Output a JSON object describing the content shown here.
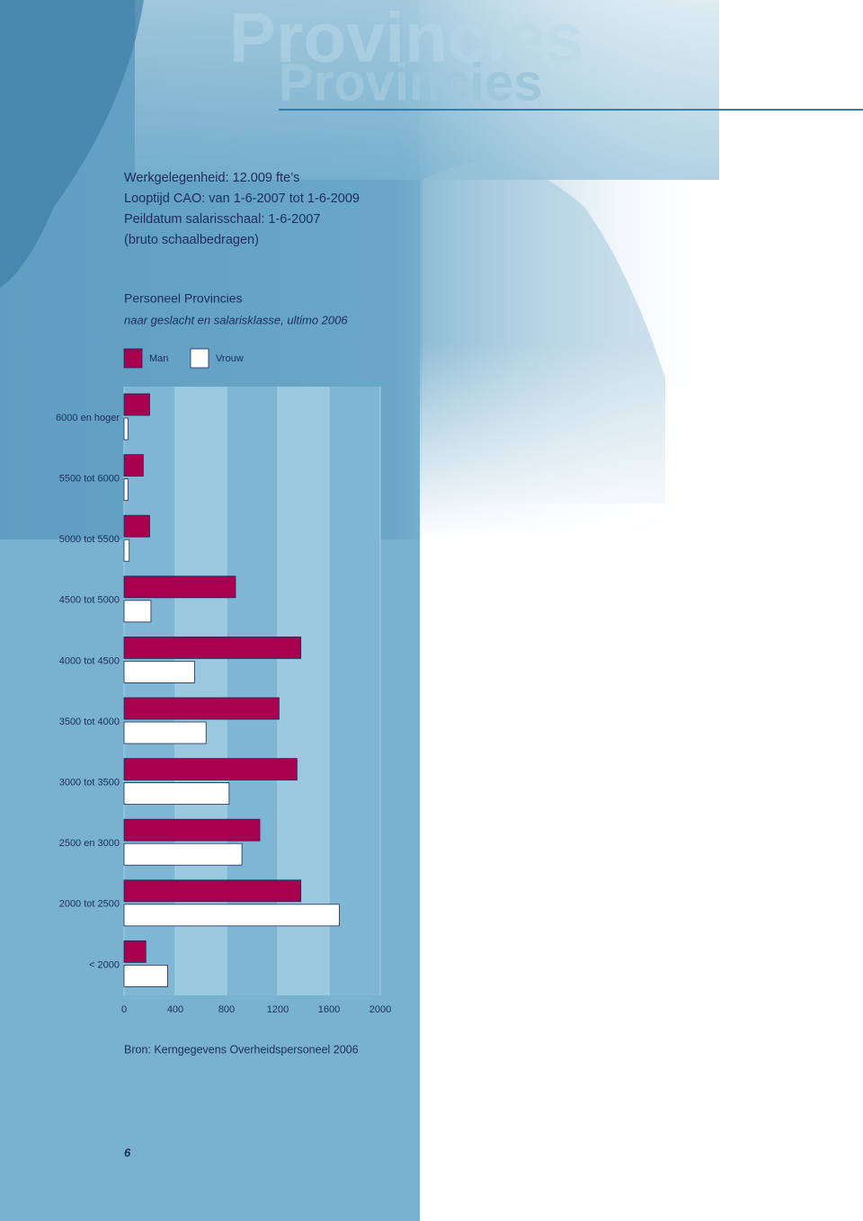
{
  "header": {
    "ghost_title": "Provincies",
    "title": "Provincies",
    "facts": [
      "Werkgelegenheid: 12.009 fte’s",
      "Looptijd CAO: van 1-6-2007 tot 1-6-2009",
      "Peildatum salarisschaal: 1-6-2007",
      "(bruto schaalbedragen)"
    ]
  },
  "chart_data": {
    "type": "hbar",
    "title": "Personeel Provincies",
    "subtitle": "naar geslacht en salarisklasse, ultimo 2006",
    "categories": [
      "6000 en hoger",
      "5500 tot 6000",
      "5000 tot 5500",
      "4500 tot 5000",
      "4000 tot 4500",
      "3500 tot 4000",
      "3000 tot 3500",
      "2500 en 3000",
      "2000 tot 2500",
      "< 2000"
    ],
    "series": [
      {
        "name": "Man",
        "color": "#a6004f",
        "values": [
          200,
          150,
          200,
          870,
          1380,
          1210,
          1350,
          1060,
          1380,
          170
        ]
      },
      {
        "name": "Vrouw",
        "color": "#ffffff",
        "values": [
          30,
          30,
          40,
          210,
          550,
          640,
          820,
          920,
          1680,
          340
        ]
      }
    ],
    "xlim": [
      0,
      2000
    ],
    "xticks": [
      0,
      400,
      800,
      1200,
      1600,
      2000
    ],
    "grid": true,
    "source": "Bron: Kerngegevens Overheidspersoneel 2006"
  },
  "page_number": "6"
}
